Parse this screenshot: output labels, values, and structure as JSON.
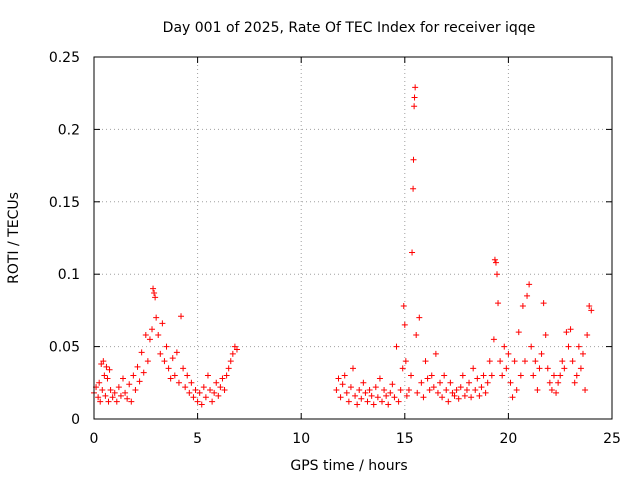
{
  "chart_data": {
    "type": "scatter",
    "title": "Day 001 of 2025, Rate Of TEC Index for receiver iqqe",
    "xlabel": "GPS time / hours",
    "ylabel": "ROTI / TECUs",
    "xlim": [
      0,
      25
    ],
    "ylim": [
      0,
      0.25
    ],
    "xticks": [
      0,
      5,
      10,
      15,
      20,
      25
    ],
    "xtick_labels": [
      "0",
      "5",
      "10",
      "15",
      "20",
      "25"
    ],
    "yticks": [
      0,
      0.05,
      0.1,
      0.15,
      0.2,
      0.25
    ],
    "ytick_labels": [
      "0",
      "0.05",
      "0.1",
      "0.15",
      "0.2",
      "0.25"
    ],
    "grid": true,
    "marker": "+",
    "color": "#ff0000",
    "series": [
      {
        "name": "ROTI",
        "points": [
          [
            0.0,
            0.018
          ],
          [
            0.1,
            0.022
          ],
          [
            0.2,
            0.015
          ],
          [
            0.25,
            0.025
          ],
          [
            0.3,
            0.012
          ],
          [
            0.35,
            0.038
          ],
          [
            0.4,
            0.02
          ],
          [
            0.45,
            0.04
          ],
          [
            0.5,
            0.03
          ],
          [
            0.55,
            0.016
          ],
          [
            0.6,
            0.036
          ],
          [
            0.65,
            0.028
          ],
          [
            0.7,
            0.012
          ],
          [
            0.75,
            0.034
          ],
          [
            0.8,
            0.02
          ],
          [
            0.9,
            0.015
          ],
          [
            1.0,
            0.018
          ],
          [
            1.1,
            0.012
          ],
          [
            1.2,
            0.022
          ],
          [
            1.3,
            0.016
          ],
          [
            1.4,
            0.028
          ],
          [
            1.5,
            0.018
          ],
          [
            1.6,
            0.014
          ],
          [
            1.7,
            0.024
          ],
          [
            1.8,
            0.012
          ],
          [
            1.9,
            0.03
          ],
          [
            2.0,
            0.02
          ],
          [
            2.1,
            0.036
          ],
          [
            2.2,
            0.026
          ],
          [
            2.3,
            0.046
          ],
          [
            2.4,
            0.032
          ],
          [
            2.5,
            0.058
          ],
          [
            2.6,
            0.04
          ],
          [
            2.7,
            0.055
          ],
          [
            2.8,
            0.062
          ],
          [
            2.85,
            0.09
          ],
          [
            2.9,
            0.087
          ],
          [
            2.95,
            0.084
          ],
          [
            3.0,
            0.07
          ],
          [
            3.1,
            0.058
          ],
          [
            3.2,
            0.045
          ],
          [
            3.3,
            0.066
          ],
          [
            3.4,
            0.04
          ],
          [
            3.5,
            0.05
          ],
          [
            3.6,
            0.035
          ],
          [
            3.7,
            0.028
          ],
          [
            3.8,
            0.042
          ],
          [
            3.9,
            0.03
          ],
          [
            4.0,
            0.046
          ],
          [
            4.1,
            0.025
          ],
          [
            4.2,
            0.071
          ],
          [
            4.3,
            0.035
          ],
          [
            4.4,
            0.022
          ],
          [
            4.5,
            0.03
          ],
          [
            4.6,
            0.018
          ],
          [
            4.7,
            0.025
          ],
          [
            4.8,
            0.015
          ],
          [
            4.9,
            0.02
          ],
          [
            5.0,
            0.012
          ],
          [
            5.1,
            0.018
          ],
          [
            5.2,
            0.01
          ],
          [
            5.3,
            0.022
          ],
          [
            5.4,
            0.015
          ],
          [
            5.5,
            0.03
          ],
          [
            5.6,
            0.02
          ],
          [
            5.7,
            0.012
          ],
          [
            5.8,
            0.018
          ],
          [
            5.9,
            0.025
          ],
          [
            6.0,
            0.016
          ],
          [
            6.1,
            0.022
          ],
          [
            6.2,
            0.028
          ],
          [
            6.3,
            0.02
          ],
          [
            6.4,
            0.03
          ],
          [
            6.5,
            0.035
          ],
          [
            6.6,
            0.04
          ],
          [
            6.7,
            0.045
          ],
          [
            6.8,
            0.05
          ],
          [
            6.9,
            0.048
          ],
          [
            11.7,
            0.02
          ],
          [
            11.8,
            0.028
          ],
          [
            11.9,
            0.015
          ],
          [
            12.0,
            0.024
          ],
          [
            12.1,
            0.03
          ],
          [
            12.2,
            0.018
          ],
          [
            12.3,
            0.012
          ],
          [
            12.4,
            0.022
          ],
          [
            12.5,
            0.035
          ],
          [
            12.6,
            0.016
          ],
          [
            12.7,
            0.01
          ],
          [
            12.8,
            0.02
          ],
          [
            12.9,
            0.014
          ],
          [
            13.0,
            0.025
          ],
          [
            13.1,
            0.018
          ],
          [
            13.2,
            0.012
          ],
          [
            13.3,
            0.02
          ],
          [
            13.4,
            0.016
          ],
          [
            13.5,
            0.01
          ],
          [
            13.6,
            0.022
          ],
          [
            13.7,
            0.015
          ],
          [
            13.8,
            0.028
          ],
          [
            13.9,
            0.012
          ],
          [
            14.0,
            0.02
          ],
          [
            14.1,
            0.016
          ],
          [
            14.2,
            0.01
          ],
          [
            14.3,
            0.018
          ],
          [
            14.4,
            0.024
          ],
          [
            14.5,
            0.015
          ],
          [
            14.6,
            0.05
          ],
          [
            14.7,
            0.012
          ],
          [
            14.8,
            0.02
          ],
          [
            14.9,
            0.035
          ],
          [
            14.95,
            0.078
          ],
          [
            15.0,
            0.065
          ],
          [
            15.05,
            0.04
          ],
          [
            15.1,
            0.016
          ],
          [
            15.2,
            0.02
          ],
          [
            15.3,
            0.03
          ],
          [
            15.35,
            0.115
          ],
          [
            15.4,
            0.159
          ],
          [
            15.42,
            0.179
          ],
          [
            15.45,
            0.216
          ],
          [
            15.47,
            0.222
          ],
          [
            15.5,
            0.229
          ],
          [
            15.55,
            0.058
          ],
          [
            15.6,
            0.018
          ],
          [
            15.7,
            0.07
          ],
          [
            15.8,
            0.025
          ],
          [
            15.9,
            0.015
          ],
          [
            16.0,
            0.04
          ],
          [
            16.1,
            0.028
          ],
          [
            16.2,
            0.02
          ],
          [
            16.3,
            0.03
          ],
          [
            16.4,
            0.022
          ],
          [
            16.5,
            0.045
          ],
          [
            16.6,
            0.018
          ],
          [
            16.7,
            0.025
          ],
          [
            16.8,
            0.015
          ],
          [
            16.9,
            0.03
          ],
          [
            17.0,
            0.02
          ],
          [
            17.1,
            0.012
          ],
          [
            17.2,
            0.025
          ],
          [
            17.3,
            0.018
          ],
          [
            17.4,
            0.016
          ],
          [
            17.5,
            0.02
          ],
          [
            17.6,
            0.014
          ],
          [
            17.7,
            0.022
          ],
          [
            17.8,
            0.03
          ],
          [
            17.9,
            0.016
          ],
          [
            18.0,
            0.02
          ],
          [
            18.1,
            0.025
          ],
          [
            18.2,
            0.015
          ],
          [
            18.3,
            0.035
          ],
          [
            18.4,
            0.02
          ],
          [
            18.5,
            0.028
          ],
          [
            18.6,
            0.016
          ],
          [
            18.7,
            0.022
          ],
          [
            18.8,
            0.03
          ],
          [
            18.9,
            0.018
          ],
          [
            19.0,
            0.025
          ],
          [
            19.1,
            0.04
          ],
          [
            19.2,
            0.03
          ],
          [
            19.3,
            0.055
          ],
          [
            19.35,
            0.11
          ],
          [
            19.4,
            0.108
          ],
          [
            19.45,
            0.1
          ],
          [
            19.5,
            0.08
          ],
          [
            19.6,
            0.04
          ],
          [
            19.7,
            0.03
          ],
          [
            19.8,
            0.05
          ],
          [
            19.9,
            0.035
          ],
          [
            20.0,
            0.045
          ],
          [
            20.1,
            0.025
          ],
          [
            20.2,
            0.015
          ],
          [
            20.3,
            0.04
          ],
          [
            20.4,
            0.02
          ],
          [
            20.5,
            0.06
          ],
          [
            20.6,
            0.03
          ],
          [
            20.7,
            0.078
          ],
          [
            20.8,
            0.04
          ],
          [
            20.9,
            0.085
          ],
          [
            21.0,
            0.093
          ],
          [
            21.1,
            0.05
          ],
          [
            21.2,
            0.03
          ],
          [
            21.3,
            0.04
          ],
          [
            21.4,
            0.02
          ],
          [
            21.5,
            0.035
          ],
          [
            21.6,
            0.045
          ],
          [
            21.7,
            0.08
          ],
          [
            21.8,
            0.058
          ],
          [
            21.9,
            0.035
          ],
          [
            22.0,
            0.025
          ],
          [
            22.1,
            0.02
          ],
          [
            22.2,
            0.03
          ],
          [
            22.3,
            0.018
          ],
          [
            22.4,
            0.025
          ],
          [
            22.5,
            0.03
          ],
          [
            22.6,
            0.04
          ],
          [
            22.7,
            0.035
          ],
          [
            22.8,
            0.06
          ],
          [
            22.9,
            0.05
          ],
          [
            23.0,
            0.062
          ],
          [
            23.1,
            0.04
          ],
          [
            23.2,
            0.025
          ],
          [
            23.3,
            0.03
          ],
          [
            23.4,
            0.05
          ],
          [
            23.5,
            0.035
          ],
          [
            23.6,
            0.045
          ],
          [
            23.7,
            0.02
          ],
          [
            23.8,
            0.058
          ],
          [
            23.9,
            0.078
          ],
          [
            24.0,
            0.075
          ]
        ]
      }
    ]
  }
}
